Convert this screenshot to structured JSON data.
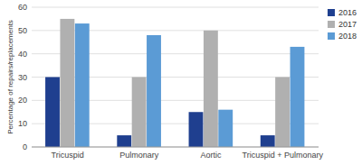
{
  "chart_data": {
    "type": "bar",
    "ylabel": "Percentage of repairs/replacements",
    "categories": [
      "Tricuspid",
      "Pulmonary",
      "Aortic",
      "Tricuspid + Pulmonary"
    ],
    "series": [
      {
        "name": "2016",
        "color": "#1f3f8f",
        "values": [
          30,
          5,
          15,
          5
        ]
      },
      {
        "name": "2017",
        "color": "#b0b0b0",
        "values": [
          55,
          30,
          50,
          30
        ]
      },
      {
        "name": "2018",
        "color": "#5b9bd5",
        "values": [
          53,
          48,
          16,
          43
        ]
      }
    ],
    "ylim": [
      0,
      60
    ],
    "yticks": [
      0,
      10,
      20,
      30,
      40,
      50,
      60
    ],
    "grid": true,
    "legend": "right"
  }
}
